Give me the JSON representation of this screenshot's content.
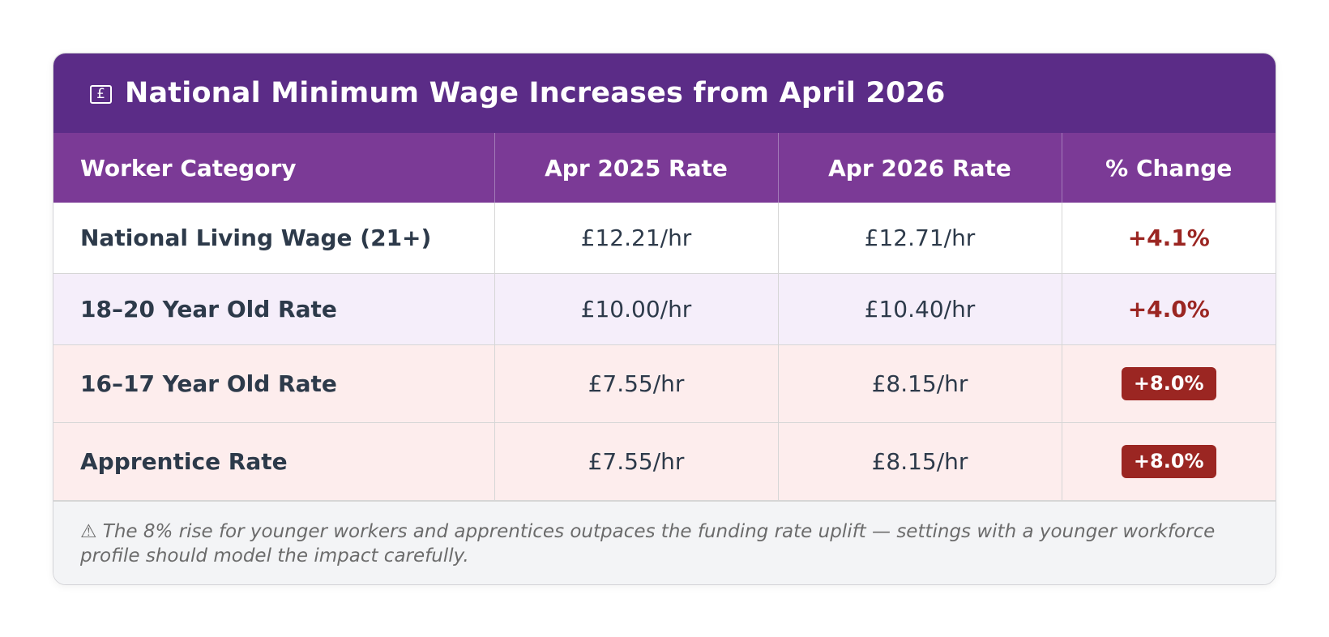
{
  "title": {
    "icon": "pound-note-icon",
    "icon_glyph": "£",
    "text": "National Minimum Wage Increases from April 2026"
  },
  "table": {
    "headers": [
      "Worker Category",
      "Apr 2025 Rate",
      "Apr 2026 Rate",
      "% Change"
    ],
    "rows": [
      {
        "category": "National Living Wage (21+)",
        "rate_2025": "£12.21/hr",
        "rate_2026": "£12.71/hr",
        "change": "+4.1%"
      },
      {
        "category": "18–20 Year Old Rate",
        "rate_2025": "£10.00/hr",
        "rate_2026": "£10.40/hr",
        "change": "+4.0%"
      },
      {
        "category": "16–17 Year Old Rate",
        "rate_2025": "£7.55/hr",
        "rate_2026": "£8.15/hr",
        "change": "+8.0%"
      },
      {
        "category": "Apprentice Rate",
        "rate_2025": "£7.55/hr",
        "rate_2026": "£8.15/hr",
        "change": "+8.0%"
      }
    ]
  },
  "footnote": {
    "icon": "warning-icon",
    "text": "⚠ The 8% rise for younger workers and apprentices outpaces the funding rate uplift — settings with a younger workforce profile should model the impact carefully."
  },
  "colors": {
    "title_bg": "#5b2c87",
    "header_bg": "#7b3a96",
    "lavender_row": "#f5eefa",
    "pink_row": "#fdeded",
    "accent_red": "#9b2622"
  }
}
